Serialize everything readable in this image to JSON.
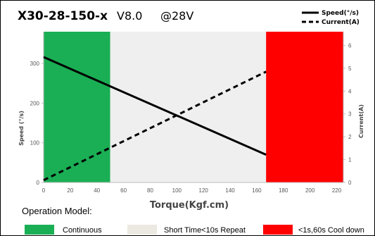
{
  "header": {
    "model": "X30-28-150-x",
    "version": "V8.0",
    "voltage": "@28V"
  },
  "chart_data": {
    "type": "line",
    "xlabel": "Torque(Kgf.cm)",
    "ylabel_left": "Speed (°/s)",
    "ylabel_right": "Current(A)",
    "xlim": [
      0,
      225
    ],
    "ylim_left": [
      0,
      380
    ],
    "ylim_right": [
      0,
      6.6
    ],
    "x_ticks": [
      0,
      20,
      40,
      60,
      80,
      100,
      120,
      140,
      160,
      180,
      200,
      220
    ],
    "y_left_ticks": [
      0,
      100,
      200,
      300
    ],
    "y_right_ticks": [
      0,
      1,
      2,
      3,
      4,
      5,
      6
    ],
    "grid": false,
    "legend_position": "top-right",
    "zones": [
      {
        "name": "Continuous",
        "x_start": 0,
        "x_end": 50,
        "color": "#1aaf54"
      },
      {
        "name": "Short Time<10s Repeat",
        "x_start": 50,
        "x_end": 167,
        "color": "#efefef"
      },
      {
        "name": "<1s,60s Cool down",
        "x_start": 167,
        "x_end": 225,
        "color": "#ff0000"
      }
    ],
    "series": [
      {
        "name": "Speed(°/s)",
        "axis": "left",
        "style": "solid",
        "color": "#000000",
        "points": [
          [
            0,
            316
          ],
          [
            167,
            70
          ]
        ]
      },
      {
        "name": "Current(A)",
        "axis": "right",
        "style": "dashed",
        "color": "#000000",
        "points": [
          [
            0,
            0.1
          ],
          [
            167,
            4.85
          ]
        ]
      }
    ]
  },
  "operation_model": {
    "title": "Operation Model:",
    "items": [
      {
        "label": "Continuous",
        "color": "#1aaf54"
      },
      {
        "label": "Short Time<10s Repeat",
        "color": "#ebe9e1"
      },
      {
        "label": "<1s,60s Cool down",
        "color": "#ff0000"
      }
    ]
  }
}
